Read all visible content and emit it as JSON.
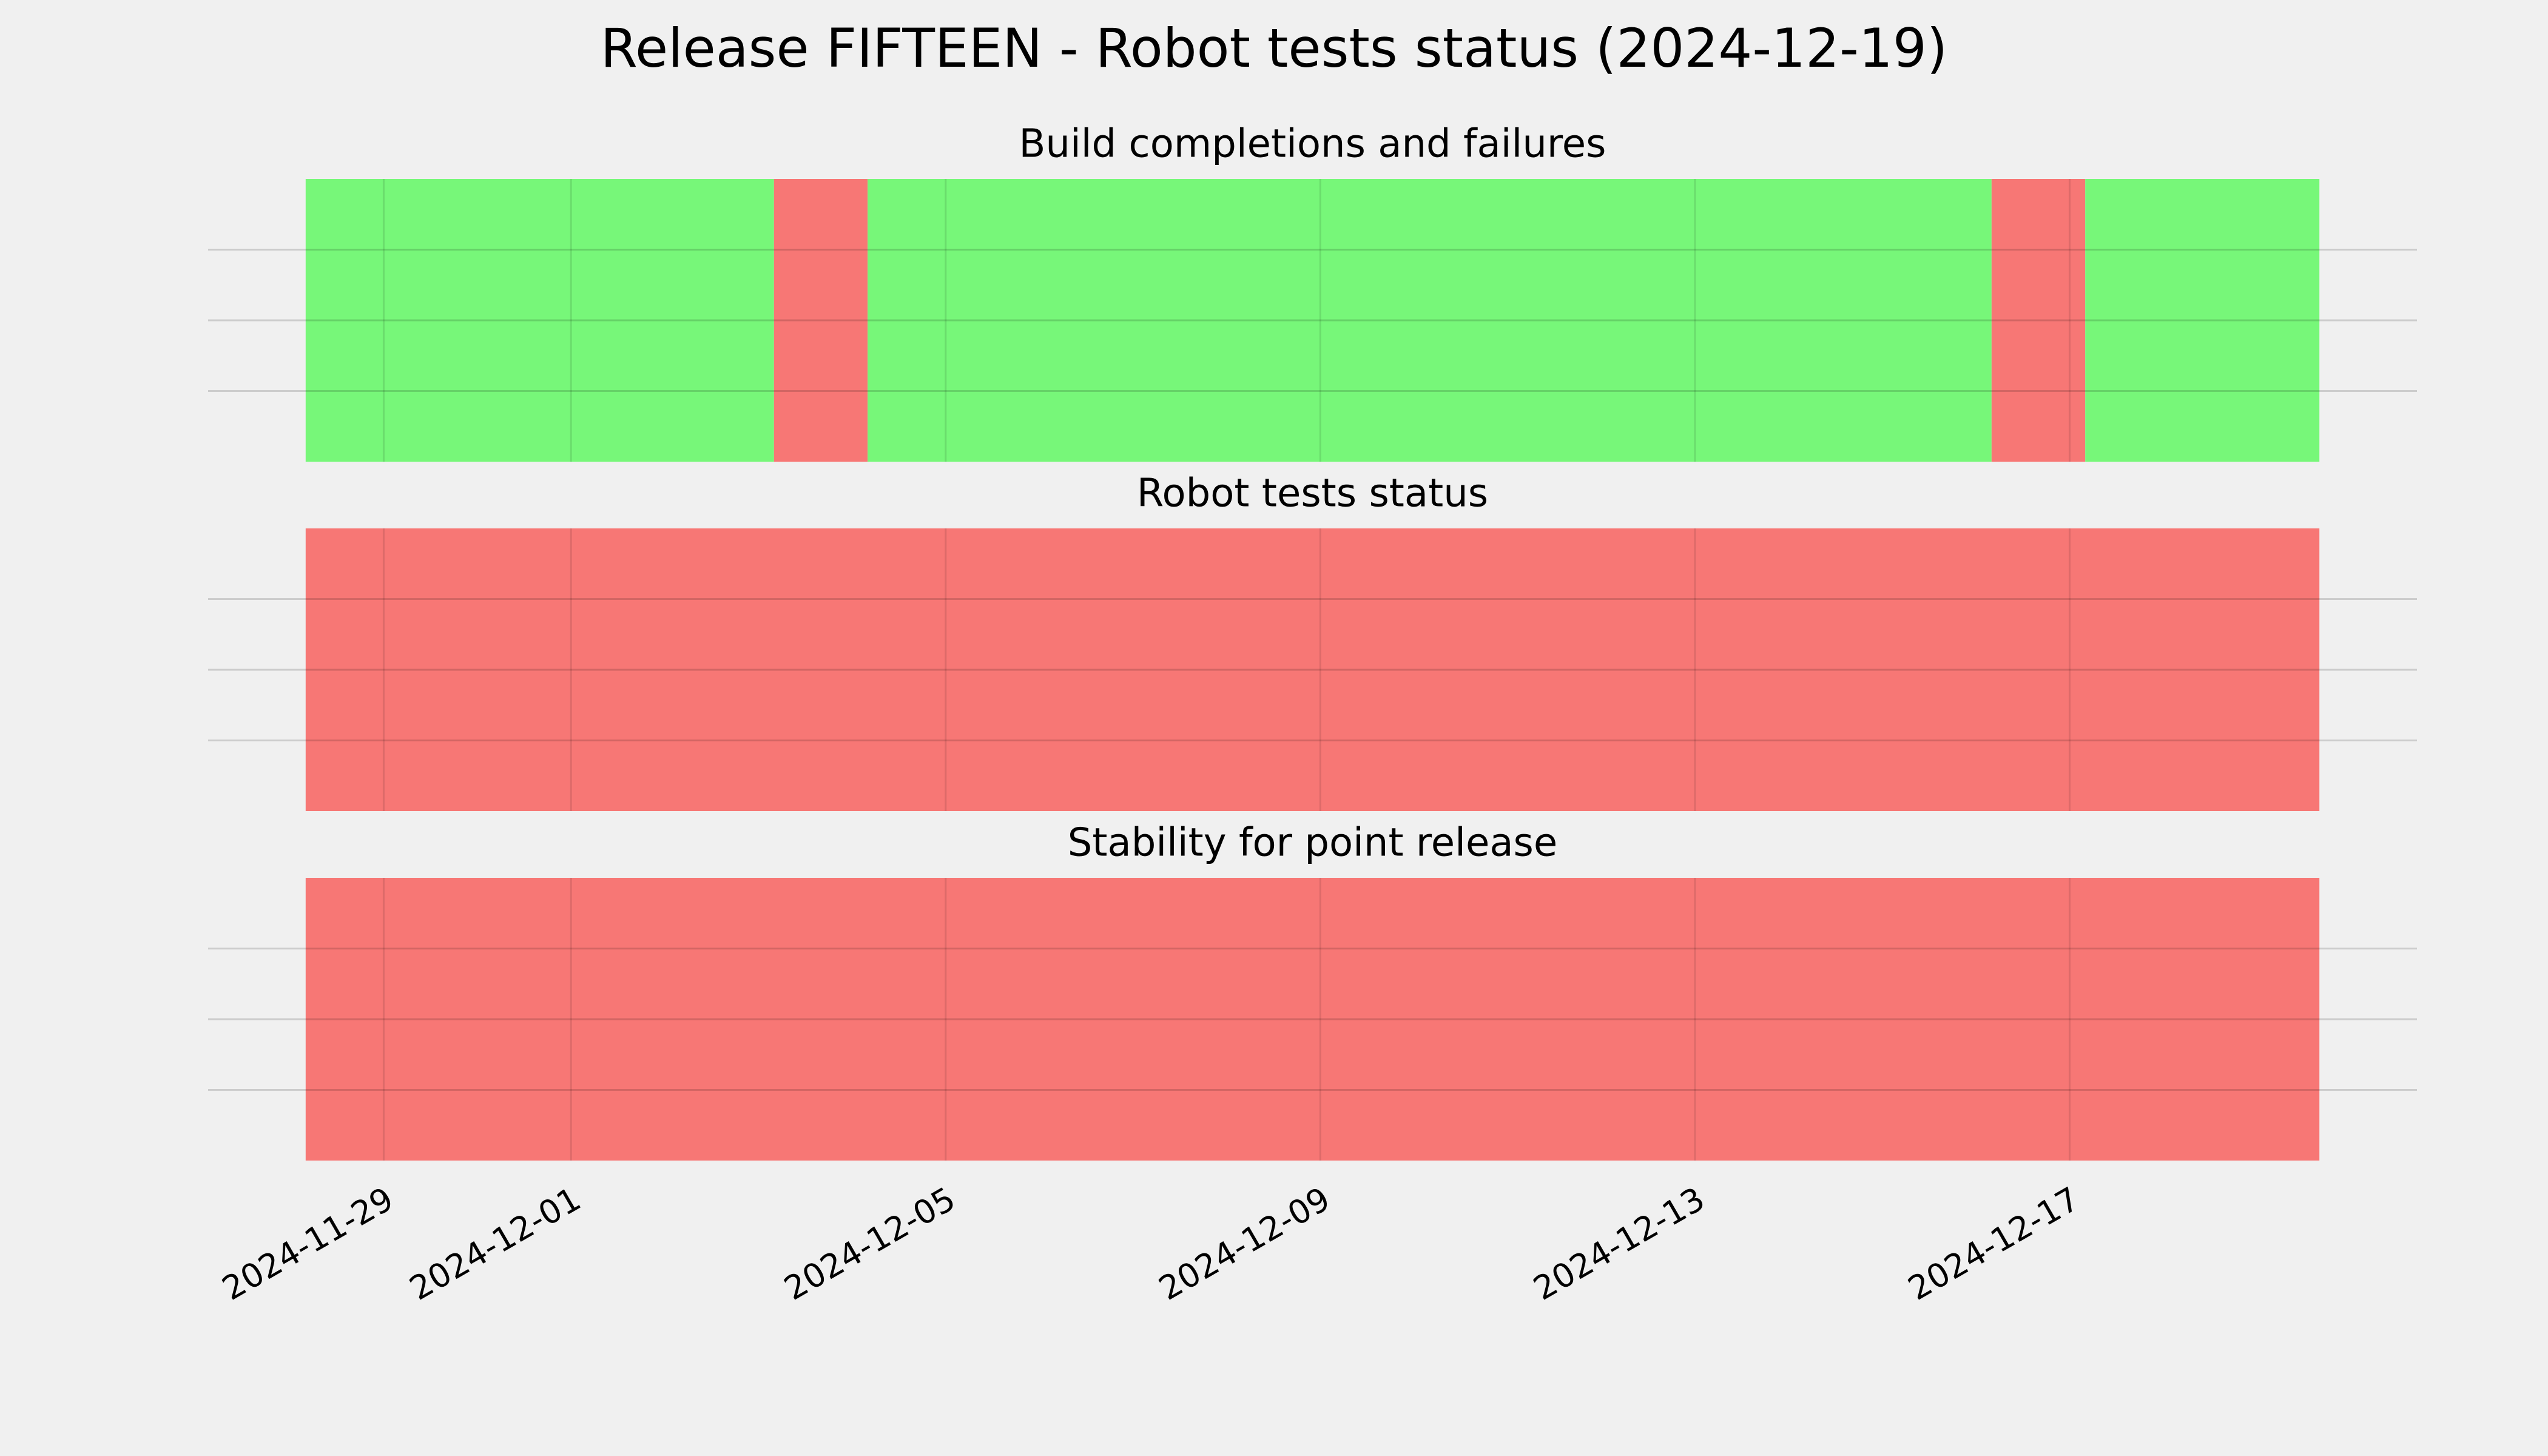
{
  "title": "Release FIFTEEN - Robot tests status (2024-12-19)",
  "chart_data": [
    {
      "type": "timeline",
      "title": "Build completions and failures",
      "xlim": [
        "2024-11-27T03:00",
        "2024-12-20T17:00"
      ],
      "xticks": [
        "2024-11-29",
        "2024-12-01",
        "2024-12-05",
        "2024-12-09",
        "2024-12-13",
        "2024-12-17"
      ],
      "ylim": [
        0,
        1
      ],
      "yticks": [
        0.25,
        0.5,
        0.75
      ],
      "grid": true,
      "spans": [
        {
          "start": "2024-11-28T04:00",
          "end": "2024-12-03T04:00",
          "color": "#77f779"
        },
        {
          "start": "2024-12-03T04:00",
          "end": "2024-12-04T04:00",
          "color": "#f77775"
        },
        {
          "start": "2024-12-04T04:00",
          "end": "2024-12-16T04:00",
          "color": "#77f779"
        },
        {
          "start": "2024-12-16T04:00",
          "end": "2024-12-17T04:00",
          "color": "#f77775"
        },
        {
          "start": "2024-12-17T04:00",
          "end": "2024-12-19T16:00",
          "color": "#77f779"
        }
      ]
    },
    {
      "type": "timeline",
      "title": "Robot tests status",
      "xlim": [
        "2024-11-27T03:00",
        "2024-12-20T17:00"
      ],
      "xticks": [
        "2024-11-29",
        "2024-12-01",
        "2024-12-05",
        "2024-12-09",
        "2024-12-13",
        "2024-12-17"
      ],
      "ylim": [
        0,
        1
      ],
      "yticks": [
        0.25,
        0.5,
        0.75
      ],
      "grid": true,
      "spans": [
        {
          "start": "2024-11-28T04:00",
          "end": "2024-12-19T16:00",
          "color": "#f77775"
        }
      ]
    },
    {
      "type": "timeline",
      "title": "Stability for point release",
      "xlim": [
        "2024-11-27T03:00",
        "2024-12-20T17:00"
      ],
      "xticks": [
        "2024-11-29",
        "2024-12-01",
        "2024-12-05",
        "2024-12-09",
        "2024-12-13",
        "2024-12-17"
      ],
      "ylim": [
        0,
        1
      ],
      "yticks": [
        0.25,
        0.5,
        0.75
      ],
      "grid": true,
      "spans": [
        {
          "start": "2024-11-28T04:00",
          "end": "2024-12-19T16:00",
          "color": "#f77775"
        }
      ]
    }
  ]
}
